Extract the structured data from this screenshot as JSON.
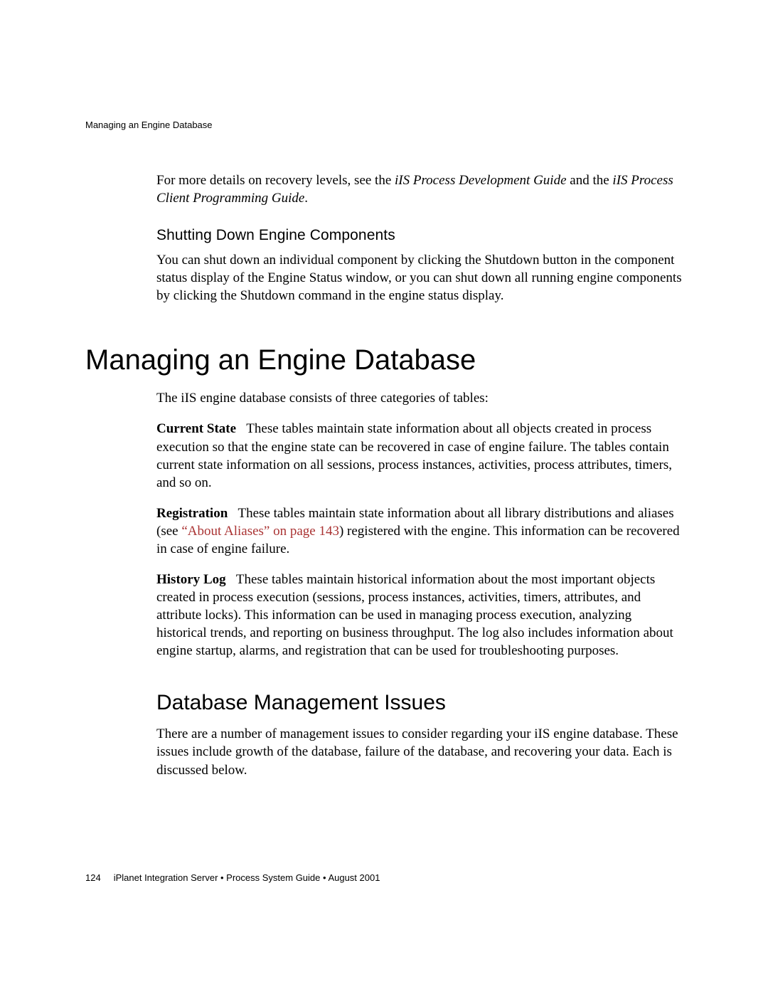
{
  "header": {
    "running": "Managing an Engine Database"
  },
  "intro": {
    "para1_pre": "For more details on recovery levels, see the ",
    "para1_em1": "iIS Process Development Guide",
    "para1_mid": " and the ",
    "para1_em2": "iIS Process Client Programming Guide",
    "para1_post": "."
  },
  "section_shutdown": {
    "title": "Shutting Down Engine Components",
    "para": "You can shut down an individual component by clicking the Shutdown button in the component status display of the Engine Status window, or you can shut down all running engine components by clicking the Shutdown command in the engine status display."
  },
  "h1": "Managing an Engine Database",
  "db_intro": "The iIS engine database consists of three categories of tables:",
  "current_state": {
    "label": "Current State",
    "text": "These tables maintain state information about all objects created in process execution so that the engine state can be recovered in case of engine failure. The tables contain current state information on all sessions, process instances, activities, process attributes, timers, and so on."
  },
  "registration": {
    "label": "Registration",
    "pre": "These tables maintain state information about all library distributions and aliases (see ",
    "link": "“About Aliases” on page 143",
    "post": ") registered with the engine. This information can be recovered in case of engine failure."
  },
  "history": {
    "label": "History Log",
    "text": "These tables maintain historical information about the most important objects created in process execution (sessions, process instances, activities, timers, attributes, and attribute locks). This information can be used in managing process execution, analyzing historical trends, and reporting on business throughput. The log also includes information about engine startup, alarms, and registration that can be used for troubleshooting purposes."
  },
  "h2": "Database Management Issues",
  "issues_para": "There are a number of management issues to consider regarding your iIS engine database. These issues include growth of the database, failure of the database, and recovering your data. Each is discussed below.",
  "footer": {
    "page": "124",
    "text": "iPlanet Integration Server • Process System Guide • August 2001"
  }
}
